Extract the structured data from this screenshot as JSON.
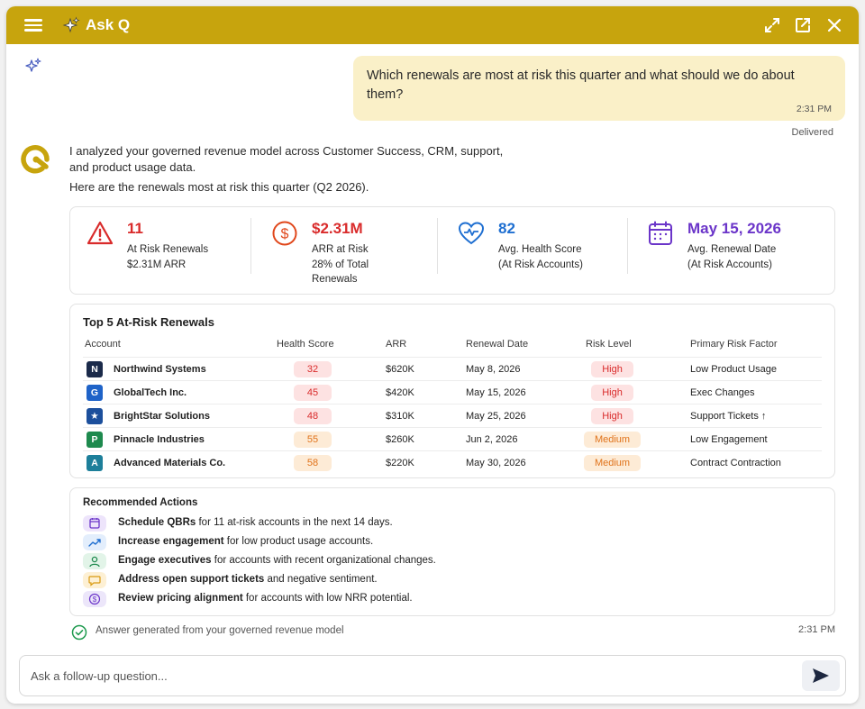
{
  "header": {
    "title": "Ask Q"
  },
  "user_message": {
    "text": "Which renewals are most at risk this quarter and what should we do about them?",
    "time": "2:31 PM",
    "status": "Delivered"
  },
  "assistant": {
    "intro": "I analyzed your governed revenue model across Customer Success, CRM, support, and product usage data.",
    "intro2": "Here are the renewals most at risk this quarter (Q2 2026)."
  },
  "kpis": [
    {
      "value": "11",
      "label": "At Risk Renewals",
      "sub": "$2.31M ARR",
      "color": "#d92b2b",
      "icon": "warning-icon"
    },
    {
      "value": "$2.31M",
      "label": "ARR at Risk",
      "sub": "28% of Total Renewals",
      "color": "#e0471b",
      "icon": "dollar-icon"
    },
    {
      "value": "82",
      "label": "Avg. Health Score",
      "sub": "(At Risk Accounts)",
      "color": "#1f6fd1",
      "icon": "heart-icon"
    },
    {
      "value": "May 15, 2026",
      "label": "Avg. Renewal Date",
      "sub": "(At Risk Accounts)",
      "color": "#6b35c9",
      "icon": "calendar-icon"
    }
  ],
  "table": {
    "title": "Top 5 At-Risk Renewals",
    "headers": [
      "Account",
      "Health Score",
      "ARR",
      "Renewal Date",
      "Risk Level",
      "Primary Risk Factor"
    ],
    "rows": [
      {
        "initial": "N",
        "account": "Northwind Systems",
        "health": "32",
        "arr": "$620K",
        "date": "May 8, 2026",
        "risk": "High",
        "factor": "Low Product Usage",
        "avatar_color": "#1b2a4a"
      },
      {
        "initial": "G",
        "account": "GlobalTech Inc.",
        "health": "45",
        "arr": "$420K",
        "date": "May 15, 2026",
        "risk": "High",
        "factor": "Exec Changes",
        "avatar_color": "#1f63c8"
      },
      {
        "initial": "★",
        "account": "BrightStar Solutions",
        "health": "48",
        "arr": "$310K",
        "date": "May 25, 2026",
        "risk": "High",
        "factor": "Support Tickets ↑",
        "avatar_color": "#1c4f9c"
      },
      {
        "initial": "P",
        "account": "Pinnacle Industries",
        "health": "55",
        "arr": "$260K",
        "date": "Jun 2, 2026",
        "risk": "Medium",
        "factor": "Low Engagement",
        "avatar_color": "#1e8a4e"
      },
      {
        "initial": "A",
        "account": "Advanced Materials Co.",
        "health": "58",
        "arr": "$220K",
        "date": "May 30, 2026",
        "risk": "Medium",
        "factor": "Contract Contraction",
        "avatar_color": "#1d7f9a"
      }
    ]
  },
  "actions": {
    "title": "Recommended Actions",
    "items": [
      {
        "bold": "Schedule QBRs",
        "rest": " for 11 at-risk accounts in the next 14 days.",
        "icon": "calendar-icon",
        "bg": "#ede4fb",
        "fg": "#6b35c9"
      },
      {
        "bold": "Increase engagement",
        "rest": " for low product usage accounts.",
        "icon": "trend-up-icon",
        "bg": "#e3eefc",
        "fg": "#1f6fd1"
      },
      {
        "bold": "Engage executives",
        "rest": " for accounts with recent organizational changes.",
        "icon": "person-icon",
        "bg": "#e2f4e8",
        "fg": "#1e8a4e"
      },
      {
        "bold": "Address open support tickets",
        "rest": " and negative sentiment.",
        "icon": "chat-icon",
        "bg": "#fdf0d4",
        "fg": "#d99a10"
      },
      {
        "bold": "Review pricing alignment",
        "rest": " for accounts with low NRR potential.",
        "icon": "dollar-icon",
        "bg": "#ece6fa",
        "fg": "#6b35c9"
      }
    ]
  },
  "footer": {
    "generated": "Answer generated from your governed revenue model",
    "time": "2:31 PM"
  },
  "input": {
    "placeholder": "Ask a follow-up question..."
  }
}
